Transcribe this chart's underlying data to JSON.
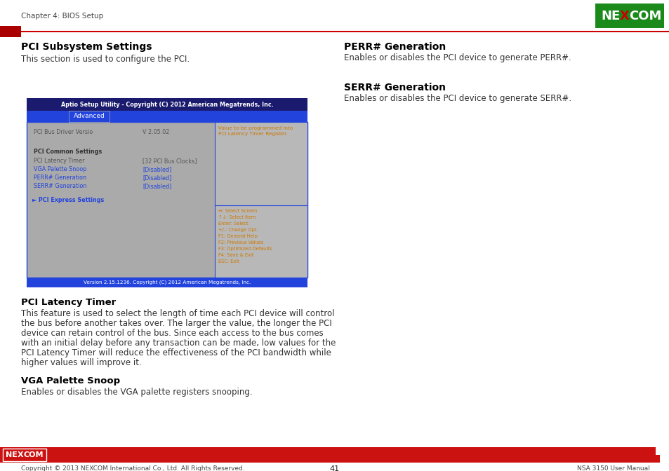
{
  "page_header_text": "Chapter 4: BIOS Setup",
  "header_line_color": "#CC0000",
  "header_rect_color": "#AA0000",
  "logo_bg_color": "#1a8a1a",
  "logo_x_color": "#CC0000",
  "section_title": "PCI Subsystem Settings",
  "section_desc": "This section is used to configure the PCI.",
  "bios_title": "Aptio Setup Utility - Copyright (C) 2012 American Megatrends, Inc.",
  "bios_title_bg": "#1a1a6e",
  "bios_tab_bg": "#2244dd",
  "bios_tab_text": "Advanced",
  "bios_body_bg": "#aaaaaa",
  "bios_border_color": "#2244dd",
  "bios_bottom_text": "Version 2.15.1236. Copyright (C) 2012 American Megatrends, Inc.",
  "bios_driver_label": "PCI Bus Driver Versio",
  "bios_driver_value": "V 2.05.02",
  "bios_help_text": "Value to be programmed into\nPCI Latency Timer Register.",
  "bios_common_label": "PCI Common Settings",
  "bios_items": [
    {
      "label": "PCI Latency Timer",
      "value": "[32 PCI Bus Clocks]",
      "blue": false
    },
    {
      "label": "VGA Palette Snoop",
      "value": "[Disabled]",
      "blue": true
    },
    {
      "label": "PERR# Generation",
      "value": "[Disabled]",
      "blue": true
    },
    {
      "label": "SERR# Generation",
      "value": "[Disabled]",
      "blue": true
    }
  ],
  "bios_express": "PCI Express Settings",
  "bios_keys": [
    "↔: Select Screen",
    "↑↓: Select Item",
    "Enter: Select",
    "+/-: Change Opt.",
    "F1: General Help",
    "F2: Previous Values",
    "F3: Optimized Defaults",
    "F4: Save & Exit",
    "ESC: Exit"
  ],
  "right_sections": [
    {
      "title": "PERR# Generation",
      "text": "Enables or disables the PCI device to generate PERR#."
    },
    {
      "title": "SERR# Generation",
      "text": "Enables or disables the PCI device to generate SERR#."
    }
  ],
  "pci_latency_title": "PCI Latency Timer",
  "pci_latency_lines": [
    "This feature is used to select the length of time each PCI device will control",
    "the bus before another takes over. The larger the value, the longer the PCI",
    "device can retain control of the bus. Since each access to the bus comes",
    "with an initial delay before any transaction can be made, low values for the",
    "PCI Latency Timer will reduce the effectiveness of the PCI bandwidth while",
    "higher values will improve it."
  ],
  "vga_title": "VGA Palette Snoop",
  "vga_text": "Enables or disables the VGA palette registers snooping.",
  "footer_bar_color": "#CC1111",
  "footer_page_num": "41",
  "footer_copyright": "Copyright © 2013 NEXCOM International Co., Ltd. All Rights Reserved.",
  "footer_manual": "NSA 3150 User Manual",
  "bg_color": "#ffffff",
  "text_color": "#000000",
  "gray_text": "#555555",
  "blue_item": "#2244dd"
}
